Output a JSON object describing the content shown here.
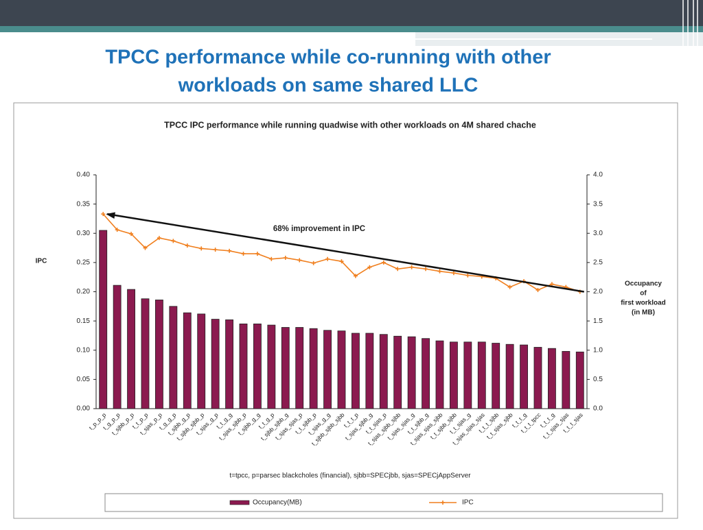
{
  "title": [
    "TPCC performance while co-running with other",
    "workloads on same shared LLC"
  ],
  "chart_data": {
    "type": "bar-line",
    "title": "TPCC IPC performance while running quadwise with other workloads on 4M shared chache",
    "ylabel": "IPC",
    "y2label": [
      "Occupancy",
      "of",
      "first workload",
      "(in MB)"
    ],
    "note": "t=tpcc, p=parsec blackcholes (financial), sjbb=SPECjbb, sjas=SPECjAppServer",
    "annotation": "68% improvement in IPC",
    "categories": [
      "t_p_p_p",
      "t_g_p_p",
      "t_sjbb_p_p",
      "t_t_p_p",
      "t_sjas_p_p",
      "t_g_g_p",
      "t_sjbb_g_p",
      "t_sjbb_sjbb_p",
      "t_sjas_g_p",
      "t_t_g_g",
      "t_sjas_sjbb_p",
      "t_sjbb_g_g",
      "t_t_g_p",
      "t_sjbb_sjbb_g",
      "t_sjas_sjas_p",
      "t_t_sjbb_p",
      "t_sjas_g_g",
      "t_sjbb_sjbb_sjbb",
      "t_t_t_p",
      "t_sjas_sjbb_g",
      "t_t_sjas_p",
      "t_sjas_sjbb_sjbb",
      "t_sjas_sjas_g",
      "t_t_sjbb_g",
      "t_sjas_sjas_sjbb",
      "t_t_sjbb_sjbb",
      "t_t_sjas_g",
      "t_sjas_sjas_sjas",
      "t_t_t_sjbb",
      "t_t_sjas_sjbb",
      "t_t_t_g",
      "t_t_t_tpcc",
      "t_t_t_g",
      "t_t_sjas_sjas",
      "t_t_t_sjas"
    ],
    "series": [
      {
        "name": "Occupancy(MB)",
        "color": "#8b1a4f",
        "kind": "bar",
        "axis": "y2",
        "values": [
          3.05,
          2.11,
          2.04,
          1.88,
          1.86,
          1.75,
          1.64,
          1.62,
          1.53,
          1.52,
          1.45,
          1.45,
          1.43,
          1.39,
          1.39,
          1.37,
          1.34,
          1.33,
          1.29,
          1.29,
          1.27,
          1.24,
          1.23,
          1.2,
          1.16,
          1.14,
          1.14,
          1.14,
          1.12,
          1.1,
          1.09,
          1.05,
          1.03,
          0.98,
          0.97
        ]
      },
      {
        "name": "IPC",
        "color": "#f07f1e",
        "kind": "line",
        "values": [
          0.333,
          0.306,
          0.299,
          0.275,
          0.292,
          0.287,
          0.279,
          0.274,
          0.272,
          0.27,
          0.265,
          0.265,
          0.256,
          0.258,
          0.254,
          0.249,
          0.256,
          0.252,
          0.227,
          0.242,
          0.25,
          0.239,
          0.242,
          0.239,
          0.235,
          0.232,
          0.228,
          0.226,
          0.223,
          0.208,
          0.218,
          0.203,
          0.213,
          0.208,
          0.2
        ]
      }
    ],
    "ylim": [
      0,
      0.4
    ],
    "yticks": [
      {
        "value": 0,
        "label": "0.00"
      },
      {
        "value": 0.05,
        "label": "0.05"
      },
      {
        "value": 0.1,
        "label": "0.10"
      },
      {
        "value": 0.15,
        "label": "0.15"
      },
      {
        "value": 0.2,
        "label": "0.20"
      },
      {
        "value": 0.25,
        "label": "0.25"
      },
      {
        "value": 0.3,
        "label": "0.30"
      },
      {
        "value": 0.35,
        "label": "0.35"
      },
      {
        "value": 0.4,
        "label": "0.40"
      }
    ],
    "y2lim": [
      0,
      4
    ],
    "y2ticks": [
      {
        "value": 0,
        "label": "0.0"
      },
      0.5,
      {
        "value": 1,
        "label": "1.0"
      },
      1.5,
      {
        "value": 2,
        "label": "2.0"
      },
      2.5,
      {
        "value": 3,
        "label": "3.0"
      },
      3.5,
      {
        "value": 4,
        "label": "4.0"
      }
    ],
    "legend": "bottom"
  }
}
